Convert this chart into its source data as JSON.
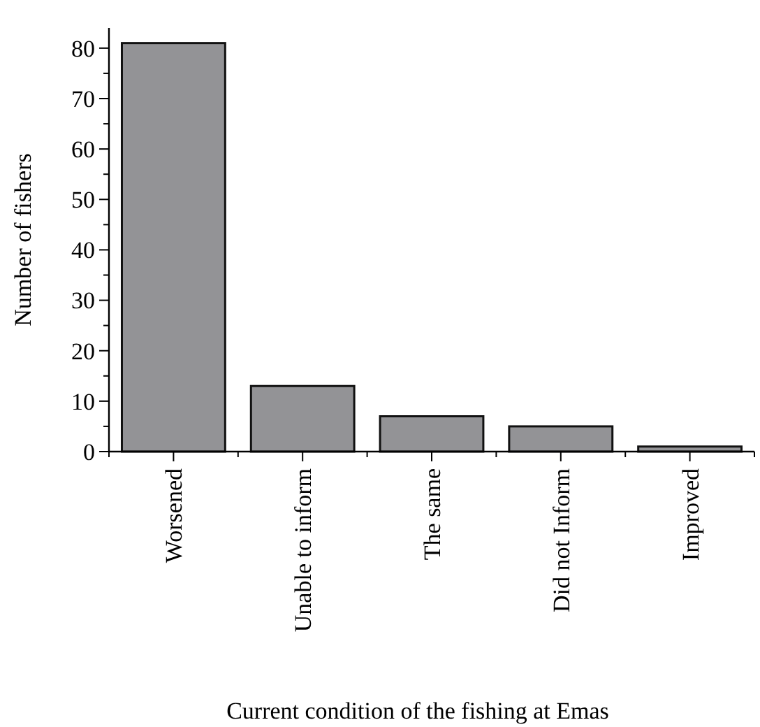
{
  "chart_data": {
    "type": "bar",
    "xlabel": "Current condition of the fishing at Emas",
    "ylabel": "Number of fishers",
    "categories": [
      "Worsened",
      "Unable to inform",
      "The same",
      "Did not Inform",
      "Improved"
    ],
    "values": [
      81,
      13,
      7,
      5,
      1
    ],
    "color": "#939396",
    "ylim": [
      0,
      84
    ],
    "yticks": [
      0,
      {
        "value": 5,
        "label": null
      },
      10,
      {
        "value": 15,
        "label": null
      },
      20,
      {
        "value": 25,
        "label": null
      },
      30,
      {
        "value": 35,
        "label": null
      },
      40,
      {
        "value": 45,
        "label": null
      },
      50,
      {
        "value": 55,
        "label": null
      },
      60,
      {
        "value": 65,
        "label": null
      },
      70,
      {
        "value": 75,
        "label": null
      },
      80
    ],
    "grid": false
  }
}
